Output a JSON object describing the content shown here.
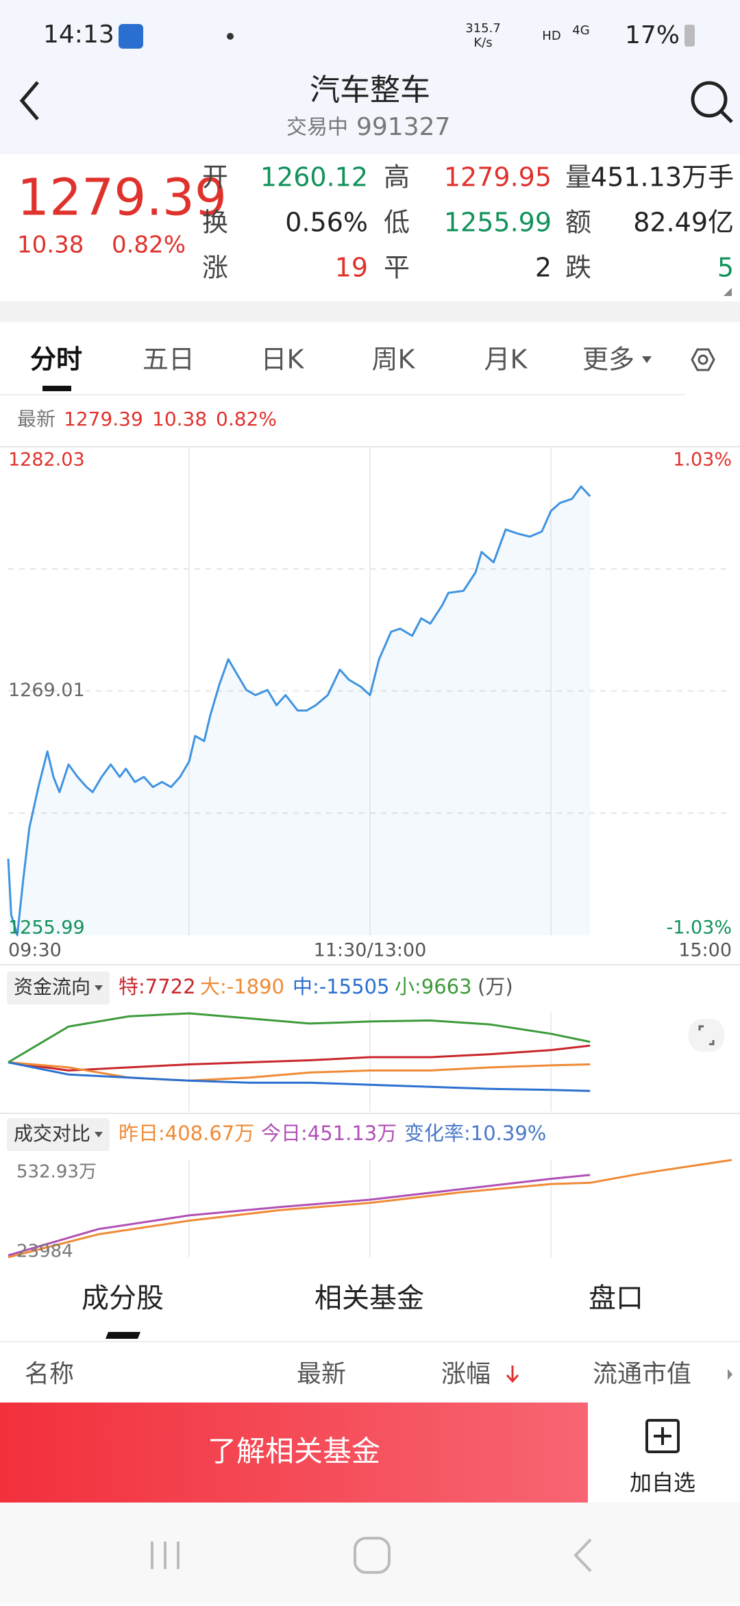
{
  "status_bar": {
    "time": "14:13",
    "speed": "315.7",
    "speed_unit": "K/s",
    "hd": "HD",
    "network": "4G",
    "battery": "17%"
  },
  "header": {
    "title": "汽车整车",
    "status": "交易中",
    "code": "991327"
  },
  "quote": {
    "price": "1279.39",
    "change": "10.38",
    "change_pct": "0.82%",
    "color": "#e0322d",
    "stats": [
      [
        {
          "label": "开",
          "value": "1260.12",
          "color": "#12925a"
        },
        {
          "label": "高",
          "value": "1279.95",
          "color": "#e0322d"
        },
        {
          "label": "量",
          "value": "451.13万手",
          "color": "#222222"
        }
      ],
      [
        {
          "label": "换",
          "value": "0.56%",
          "color": "#222222"
        },
        {
          "label": "低",
          "value": "1255.99",
          "color": "#12925a"
        },
        {
          "label": "额",
          "value": "82.49亿",
          "color": "#222222"
        }
      ],
      [
        {
          "label": "涨",
          "value": "19",
          "color": "#e0322d"
        },
        {
          "label": "平",
          "value": "2",
          "color": "#222222"
        },
        {
          "label": "跌",
          "value": "5",
          "color": "#12925a"
        }
      ]
    ]
  },
  "tabs": [
    "分时",
    "五日",
    "日K",
    "周K",
    "月K",
    "更多"
  ],
  "latest": {
    "label": "最新",
    "price": "1279.39",
    "change": "10.38",
    "change_pct": "0.82%"
  },
  "chart_data": [
    {
      "type": "line",
      "area": true,
      "x": [
        0,
        1,
        3,
        5,
        7,
        10,
        13,
        15,
        17,
        20,
        23,
        26,
        28,
        31,
        34,
        37,
        39,
        42,
        45,
        48,
        51,
        54,
        57,
        60,
        62,
        65,
        67,
        70,
        73,
        75,
        79,
        82,
        86,
        89,
        92,
        96,
        99,
        102,
        106,
        110,
        113,
        117,
        120,
        123,
        127,
        130,
        134,
        137,
        140,
        144,
        146,
        151,
        155,
        157,
        161,
        165,
        169,
        173,
        177,
        180,
        183,
        187,
        190,
        193
      ],
      "series": [
        {
          "color": "#3f93e0",
          "values": [
            1260.07,
            1257.08,
            1255.99,
            1258.99,
            1261.71,
            1263.89,
            1265.79,
            1264.43,
            1263.62,
            1265.09,
            1264.43,
            1263.89,
            1263.62,
            1264.43,
            1265.09,
            1264.43,
            1264.87,
            1264.16,
            1264.43,
            1263.89,
            1264.16,
            1263.89,
            1264.43,
            1265.25,
            1266.61,
            1266.34,
            1267.7,
            1269.34,
            1270.7,
            1270.15,
            1269.06,
            1268.79,
            1269.06,
            1268.25,
            1268.79,
            1267.97,
            1267.97,
            1268.25,
            1268.79,
            1270.15,
            1269.61,
            1269.23,
            1268.79,
            1270.7,
            1272.17,
            1272.33,
            1271.95,
            1272.88,
            1272.6,
            1273.59,
            1274.24,
            1274.35,
            1275.33,
            1276.42,
            1275.87,
            1277.62,
            1277.4,
            1277.24,
            1277.51,
            1278.6,
            1279.03,
            1279.25,
            1279.91,
            1279.39
          ]
        }
      ],
      "xlim": [
        0,
        240
      ],
      "xticks": [
        {
          "value": 0,
          "label": "09:30"
        },
        {
          "value": 120,
          "label": "11:30/13:00"
        },
        {
          "value": 240,
          "label": "15:00"
        }
      ],
      "xgrid": [
        60,
        120,
        180
      ],
      "ylim": [
        1255.99,
        1282.03
      ],
      "yticks": [
        1282.03,
        1269.01,
        1255.99
      ],
      "ygrid": [
        1275.52,
        1269.01,
        1262.5
      ],
      "y2lim": [
        -1.03,
        1.03
      ],
      "y2ticks": [
        {
          "value": 1.03,
          "label": "1.03%"
        },
        {
          "value": -1.03,
          "label": "-1.03%"
        }
      ]
    },
    {
      "type": "line",
      "selector": "资金流向",
      "unit": "(万)",
      "x": [
        0,
        20,
        40,
        60,
        80,
        100,
        120,
        140,
        160,
        180,
        193
      ],
      "xlim": [
        0,
        240
      ],
      "xgrid": [
        60,
        120,
        180
      ],
      "ylim": [
        -26000,
        25000
      ],
      "series": [
        {
          "name": "特:7722",
          "color": "#c9252b",
          "values": [
            -840,
            -5030,
            -3460,
            -1890,
            -840,
            210,
            1780,
            1780,
            3350,
            5450,
            7722
          ]
        },
        {
          "name": "大:-1890",
          "color": "#ef8a35",
          "values": [
            -840,
            -3460,
            -8700,
            -10270,
            -8700,
            -6080,
            -5030,
            -5030,
            -3460,
            -2410,
            -1890
          ]
        },
        {
          "name": "中:-15505",
          "color": "#2a6fd0",
          "values": [
            -840,
            -7130,
            -8700,
            -10270,
            -11320,
            -11320,
            -12370,
            -13410,
            -14460,
            -15000,
            -15505
          ]
        },
        {
          "name": "小:9663",
          "color": "#3c9a3a",
          "values": [
            -840,
            17500,
            22740,
            24310,
            21690,
            19070,
            20120,
            20650,
            18550,
            13830,
            9663
          ]
        }
      ]
    },
    {
      "type": "line",
      "selector": "成交对比",
      "change": "变化率:10.39%",
      "xlim": [
        0,
        240
      ],
      "xgrid": [
        60,
        120,
        180
      ],
      "ylim": [
        23984,
        5329300
      ],
      "yticks": [
        {
          "value": 5329300,
          "label": "532.93万"
        },
        23984
      ],
      "series": [
        {
          "name": "昨日:408.67万",
          "color": "#ef8a35",
          "x": [
            0,
            30,
            60,
            90,
            120,
            150,
            180,
            193,
            210,
            240
          ],
          "values": [
            23984,
            1279000,
            2020500,
            2591000,
            2990000,
            3561000,
            4017000,
            4086700,
            4588000,
            5329300
          ]
        },
        {
          "name": "今日:451.13万",
          "color": "#b04fb5",
          "x": [
            0,
            30,
            60,
            90,
            120,
            150,
            180,
            193
          ],
          "values": [
            130000,
            1564000,
            2306000,
            2762000,
            3162000,
            3732000,
            4303000,
            4511300
          ]
        }
      ]
    }
  ],
  "bottom_tabs": [
    "成分股",
    "相关基金",
    "盘口"
  ],
  "columns": [
    "名称",
    "最新",
    "涨幅",
    "流通市值"
  ],
  "actions": {
    "fund_button": "了解相关基金",
    "watchlist": "加自选"
  }
}
